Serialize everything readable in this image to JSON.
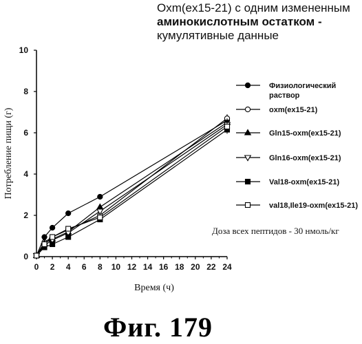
{
  "chart_data": {
    "type": "line",
    "title_lines": [
      "Oxm(ex15-21) с одним измененным",
      "аминокислотным остатком -",
      "кумулятивные данные"
    ],
    "xlabel": "Время (ч)",
    "ylabel": "Потребление пищи (г)",
    "xlim": [
      0,
      24
    ],
    "ylim": [
      0,
      10
    ],
    "xticks": [
      0,
      2,
      4,
      6,
      8,
      10,
      12,
      14,
      16,
      18,
      20,
      22,
      24
    ],
    "yticks": [
      0,
      2,
      4,
      6,
      8,
      10
    ],
    "grid": false,
    "legend_position": "right",
    "annotation": "Доза всех пептидов - 30 нмоль/кг",
    "series": [
      {
        "name": "Физиологический раствор",
        "marker": "filled-circle",
        "x": [
          0,
          1,
          2,
          4,
          8,
          24
        ],
        "y": [
          0.05,
          0.95,
          1.4,
          2.1,
          2.9,
          6.6
        ]
      },
      {
        "name": "oxm(ex15-21)",
        "marker": "open-circle",
        "x": [
          0,
          1,
          2,
          4,
          8,
          24
        ],
        "y": [
          0.05,
          0.7,
          0.95,
          1.3,
          2.0,
          6.7
        ]
      },
      {
        "name": "Gln15-oxm(ex15-21)",
        "marker": "filled-triangle",
        "x": [
          0,
          1,
          2,
          4,
          8,
          24
        ],
        "y": [
          0.05,
          0.65,
          0.85,
          1.2,
          2.4,
          6.5
        ]
      },
      {
        "name": "Gln16-oxm(ex15-21)",
        "marker": "open-triangle-down",
        "x": [
          0,
          1,
          2,
          4,
          8,
          24
        ],
        "y": [
          0.05,
          0.55,
          0.8,
          1.15,
          2.2,
          6.4
        ]
      },
      {
        "name": "Val18-oxm(ex15-21)",
        "marker": "filled-square",
        "x": [
          0,
          1,
          2,
          4,
          8,
          24
        ],
        "y": [
          0.05,
          0.45,
          0.6,
          0.95,
          1.8,
          6.15
        ]
      },
      {
        "name": "val18,Ile19-oxm(ex15-21)",
        "marker": "open-square",
        "x": [
          0,
          1,
          2,
          4,
          8,
          24
        ],
        "y": [
          0.05,
          0.6,
          0.95,
          1.35,
          1.9,
          6.3
        ]
      }
    ]
  },
  "figure_label": "Фиг. 179"
}
